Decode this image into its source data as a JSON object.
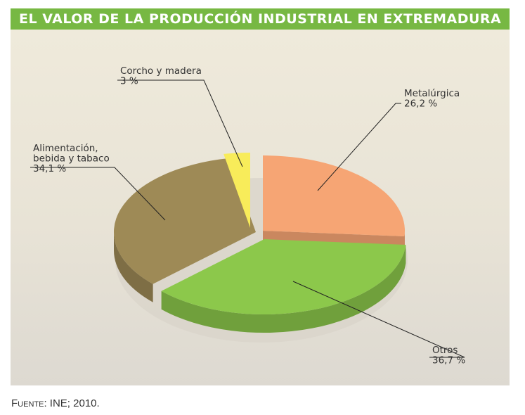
{
  "header": {
    "title": "EL VALOR DE LA PRODUCCIÓN INDUSTRIAL EN EXTREMADURA"
  },
  "footer": {
    "source_label": "Fuente",
    "source_text": ": INE; 2010."
  },
  "chart_data": {
    "type": "pie",
    "title": "EL VALOR DE LA PRODUCCIÓN INDUSTRIAL EN EXTREMADURA",
    "slices": [
      {
        "label": "Metalúrgica",
        "value": 26.2,
        "value_text": "26,2 %",
        "color": "#f6a574"
      },
      {
        "label": "Otros",
        "value": 36.7,
        "value_text": "36,7 %",
        "color": "#8cc84b"
      },
      {
        "label": "Alimentación, bebida y tabaco",
        "label_lines": [
          "Alimentación,",
          "bebida y tabaco"
        ],
        "value": 34.1,
        "value_text": "34,1 %",
        "color": "#9e8a56"
      },
      {
        "label": "Corcho y madera",
        "value": 3,
        "value_text": "3 %",
        "color": "#f8ec5a"
      }
    ]
  }
}
